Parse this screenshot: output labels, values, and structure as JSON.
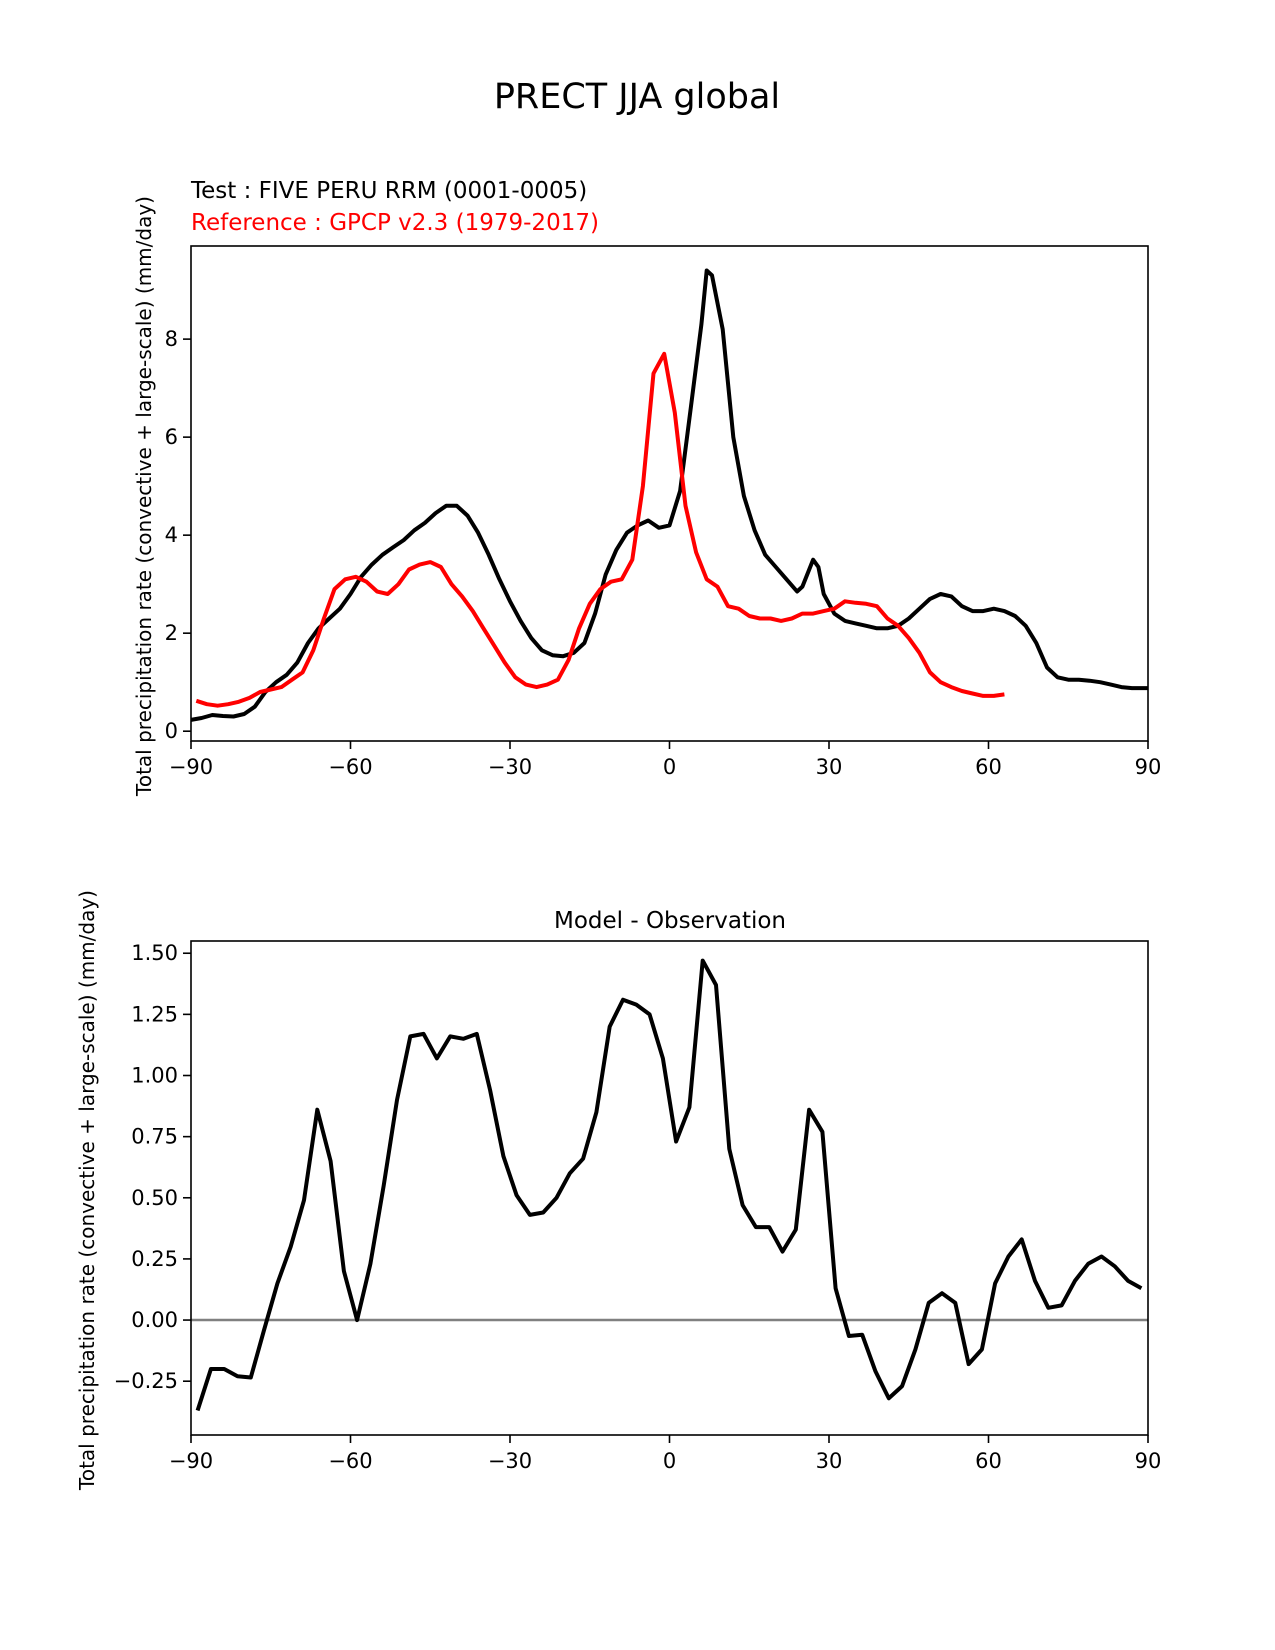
{
  "figure": {
    "suptitle": "PRECT JJA global"
  },
  "chart_data": [
    {
      "type": "line",
      "title_test": "Test : FIVE PERU RRM (0001-0005)",
      "title_ref": "Reference : GPCP v2.3 (1979-2017)",
      "xlabel": "",
      "ylabel": "Total precipitation rate (convective + large-scale) (mm/day)",
      "xlim": [
        -90,
        90
      ],
      "ylim": [
        -0.2,
        9.9
      ],
      "xticks": [
        -90,
        -60,
        -30,
        0,
        30,
        60,
        90
      ],
      "xtick_labels": [
        "−90",
        "−60",
        "−30",
        "0",
        "30",
        "60",
        "90"
      ],
      "yticks": [
        0,
        2,
        4,
        6,
        8
      ],
      "ytick_labels": [
        "0",
        "2",
        "4",
        "6",
        "8"
      ],
      "series": [
        {
          "name": "Test",
          "color": "#000000",
          "points": [
            [
              -90,
              0.23
            ],
            [
              -88,
              0.27
            ],
            [
              -86,
              0.33
            ],
            [
              -84,
              0.31
            ],
            [
              -82,
              0.3
            ],
            [
              -80,
              0.35
            ],
            [
              -78,
              0.5
            ],
            [
              -76,
              0.8
            ],
            [
              -74,
              1.0
            ],
            [
              -72,
              1.15
            ],
            [
              -70,
              1.4
            ],
            [
              -68,
              1.8
            ],
            [
              -66,
              2.1
            ],
            [
              -64,
              2.3
            ],
            [
              -62,
              2.5
            ],
            [
              -60,
              2.8
            ],
            [
              -58,
              3.15
            ],
            [
              -56,
              3.4
            ],
            [
              -54,
              3.6
            ],
            [
              -52,
              3.75
            ],
            [
              -50,
              3.9
            ],
            [
              -48,
              4.1
            ],
            [
              -46,
              4.25
            ],
            [
              -44,
              4.45
            ],
            [
              -42,
              4.6
            ],
            [
              -40,
              4.6
            ],
            [
              -38,
              4.4
            ],
            [
              -36,
              4.05
            ],
            [
              -34,
              3.6
            ],
            [
              -32,
              3.1
            ],
            [
              -30,
              2.65
            ],
            [
              -28,
              2.25
            ],
            [
              -26,
              1.9
            ],
            [
              -24,
              1.65
            ],
            [
              -22,
              1.55
            ],
            [
              -20,
              1.53
            ],
            [
              -18,
              1.6
            ],
            [
              -16,
              1.8
            ],
            [
              -14,
              2.4
            ],
            [
              -12,
              3.2
            ],
            [
              -10,
              3.7
            ],
            [
              -8,
              4.05
            ],
            [
              -6,
              4.2
            ],
            [
              -4,
              4.3
            ],
            [
              -2,
              4.15
            ],
            [
              0,
              4.2
            ],
            [
              2,
              4.9
            ],
            [
              4,
              6.6
            ],
            [
              6,
              8.3
            ],
            [
              7,
              9.4
            ],
            [
              8,
              9.3
            ],
            [
              10,
              8.2
            ],
            [
              12,
              6.0
            ],
            [
              14,
              4.8
            ],
            [
              16,
              4.1
            ],
            [
              18,
              3.6
            ],
            [
              20,
              3.35
            ],
            [
              22,
              3.1
            ],
            [
              24,
              2.85
            ],
            [
              25,
              2.95
            ],
            [
              27,
              3.5
            ],
            [
              28,
              3.35
            ],
            [
              29,
              2.8
            ],
            [
              31,
              2.4
            ],
            [
              33,
              2.25
            ],
            [
              35,
              2.2
            ],
            [
              37,
              2.15
            ],
            [
              39,
              2.1
            ],
            [
              41,
              2.1
            ],
            [
              43,
              2.15
            ],
            [
              45,
              2.3
            ],
            [
              47,
              2.5
            ],
            [
              49,
              2.7
            ],
            [
              51,
              2.8
            ],
            [
              53,
              2.75
            ],
            [
              55,
              2.55
            ],
            [
              57,
              2.45
            ],
            [
              59,
              2.45
            ],
            [
              61,
              2.5
            ],
            [
              63,
              2.45
            ],
            [
              65,
              2.35
            ],
            [
              67,
              2.15
            ],
            [
              69,
              1.8
            ],
            [
              71,
              1.3
            ],
            [
              73,
              1.1
            ],
            [
              75,
              1.05
            ],
            [
              77,
              1.05
            ],
            [
              79,
              1.03
            ],
            [
              81,
              1.0
            ],
            [
              83,
              0.95
            ],
            [
              85,
              0.9
            ],
            [
              87,
              0.88
            ],
            [
              90,
              0.88
            ]
          ]
        },
        {
          "name": "Reference",
          "color": "#ff0000",
          "points": [
            [
              -89,
              0.62
            ],
            [
              -87,
              0.55
            ],
            [
              -85,
              0.52
            ],
            [
              -83,
              0.55
            ],
            [
              -81,
              0.6
            ],
            [
              -79,
              0.68
            ],
            [
              -77,
              0.8
            ],
            [
              -75,
              0.85
            ],
            [
              -73,
              0.9
            ],
            [
              -71,
              1.05
            ],
            [
              -69,
              1.2
            ],
            [
              -67,
              1.65
            ],
            [
              -65,
              2.3
            ],
            [
              -63,
              2.9
            ],
            [
              -61,
              3.1
            ],
            [
              -59,
              3.15
            ],
            [
              -57,
              3.05
            ],
            [
              -55,
              2.85
            ],
            [
              -53,
              2.8
            ],
            [
              -51,
              3.0
            ],
            [
              -49,
              3.3
            ],
            [
              -47,
              3.4
            ],
            [
              -45,
              3.45
            ],
            [
              -43,
              3.35
            ],
            [
              -41,
              3.0
            ],
            [
              -39,
              2.75
            ],
            [
              -37,
              2.45
            ],
            [
              -35,
              2.1
            ],
            [
              -33,
              1.75
            ],
            [
              -31,
              1.4
            ],
            [
              -29,
              1.1
            ],
            [
              -27,
              0.95
            ],
            [
              -25,
              0.9
            ],
            [
              -23,
              0.95
            ],
            [
              -21,
              1.05
            ],
            [
              -19,
              1.45
            ],
            [
              -17,
              2.1
            ],
            [
              -15,
              2.6
            ],
            [
              -13,
              2.9
            ],
            [
              -11,
              3.05
            ],
            [
              -9,
              3.1
            ],
            [
              -7,
              3.5
            ],
            [
              -5,
              5.0
            ],
            [
              -3,
              7.3
            ],
            [
              -1,
              7.7
            ],
            [
              1,
              6.5
            ],
            [
              3,
              4.6
            ],
            [
              5,
              3.65
            ],
            [
              7,
              3.1
            ],
            [
              9,
              2.95
            ],
            [
              11,
              2.55
            ],
            [
              13,
              2.5
            ],
            [
              15,
              2.35
            ],
            [
              17,
              2.3
            ],
            [
              19,
              2.3
            ],
            [
              21,
              2.25
            ],
            [
              23,
              2.3
            ],
            [
              25,
              2.4
            ],
            [
              27,
              2.4
            ],
            [
              29,
              2.45
            ],
            [
              31,
              2.5
            ],
            [
              33,
              2.65
            ],
            [
              35,
              2.62
            ],
            [
              37,
              2.6
            ],
            [
              39,
              2.55
            ],
            [
              41,
              2.3
            ],
            [
              43,
              2.15
            ],
            [
              45,
              1.9
            ],
            [
              47,
              1.6
            ],
            [
              49,
              1.2
            ],
            [
              51,
              1.0
            ],
            [
              53,
              0.9
            ],
            [
              55,
              0.82
            ],
            [
              57,
              0.77
            ],
            [
              59,
              0.72
            ],
            [
              61,
              0.72
            ],
            [
              63,
              0.75
            ]
          ]
        }
      ]
    },
    {
      "type": "line",
      "title": "Model - Observation",
      "xlabel": "",
      "ylabel": "Total precipitation rate (convective + large-scale) (mm/day)",
      "xlim": [
        -90,
        90
      ],
      "ylim": [
        -0.47,
        1.55
      ],
      "xticks": [
        -90,
        -60,
        -30,
        0,
        30,
        60,
        90
      ],
      "xtick_labels": [
        "−90",
        "−60",
        "−30",
        "0",
        "30",
        "60",
        "90"
      ],
      "yticks": [
        -0.25,
        0.0,
        0.25,
        0.5,
        0.75,
        1.0,
        1.25,
        1.5
      ],
      "ytick_labels": [
        "−0.25",
        "0.00",
        "0.25",
        "0.50",
        "0.75",
        "1.00",
        "1.25",
        "1.50"
      ],
      "reference_line": {
        "y": 0,
        "color": "#808080"
      },
      "series": [
        {
          "name": "Difference",
          "color": "#000000",
          "points": [
            [
              -88.75,
              -0.37
            ],
            [
              -86.25,
              -0.2
            ],
            [
              -83.75,
              -0.2
            ],
            [
              -81.25,
              -0.23
            ],
            [
              -78.75,
              -0.235
            ],
            [
              -76.25,
              -0.04
            ],
            [
              -73.75,
              0.15
            ],
            [
              -71.25,
              0.3
            ],
            [
              -68.75,
              0.49
            ],
            [
              -66.25,
              0.86
            ],
            [
              -63.75,
              0.65
            ],
            [
              -61.25,
              0.2
            ],
            [
              -58.75,
              0.0
            ],
            [
              -56.25,
              0.23
            ],
            [
              -53.75,
              0.55
            ],
            [
              -51.25,
              0.9
            ],
            [
              -48.75,
              1.16
            ],
            [
              -46.25,
              1.17
            ],
            [
              -43.75,
              1.07
            ],
            [
              -41.25,
              1.16
            ],
            [
              -38.75,
              1.15
            ],
            [
              -36.25,
              1.17
            ],
            [
              -33.75,
              0.94
            ],
            [
              -31.25,
              0.67
            ],
            [
              -28.75,
              0.51
            ],
            [
              -26.25,
              0.43
            ],
            [
              -23.75,
              0.44
            ],
            [
              -21.25,
              0.5
            ],
            [
              -18.75,
              0.6
            ],
            [
              -16.25,
              0.66
            ],
            [
              -13.75,
              0.85
            ],
            [
              -11.25,
              1.2
            ],
            [
              -8.75,
              1.31
            ],
            [
              -6.25,
              1.29
            ],
            [
              -3.75,
              1.25
            ],
            [
              -1.25,
              1.07
            ],
            [
              1.25,
              0.73
            ],
            [
              3.75,
              0.87
            ],
            [
              6.25,
              1.47
            ],
            [
              8.75,
              1.37
            ],
            [
              11.25,
              0.7
            ],
            [
              13.75,
              0.47
            ],
            [
              16.25,
              0.38
            ],
            [
              18.75,
              0.38
            ],
            [
              21.25,
              0.28
            ],
            [
              23.75,
              0.37
            ],
            [
              26.25,
              0.86
            ],
            [
              28.75,
              0.77
            ],
            [
              31.25,
              0.13
            ],
            [
              33.75,
              -0.065
            ],
            [
              36.25,
              -0.06
            ],
            [
              38.75,
              -0.21
            ],
            [
              41.25,
              -0.32
            ],
            [
              43.75,
              -0.27
            ],
            [
              46.25,
              -0.12
            ],
            [
              48.75,
              0.07
            ],
            [
              51.25,
              0.11
            ],
            [
              53.75,
              0.07
            ],
            [
              56.25,
              -0.18
            ],
            [
              58.75,
              -0.12
            ],
            [
              61.25,
              0.15
            ],
            [
              63.75,
              0.26
            ],
            [
              66.25,
              0.33
            ],
            [
              68.75,
              0.16
            ],
            [
              71.25,
              0.05
            ],
            [
              73.75,
              0.06
            ],
            [
              76.25,
              0.16
            ],
            [
              78.75,
              0.23
            ],
            [
              81.25,
              0.26
            ],
            [
              83.75,
              0.22
            ],
            [
              86.25,
              0.16
            ],
            [
              88.75,
              0.13
            ]
          ]
        }
      ]
    }
  ]
}
